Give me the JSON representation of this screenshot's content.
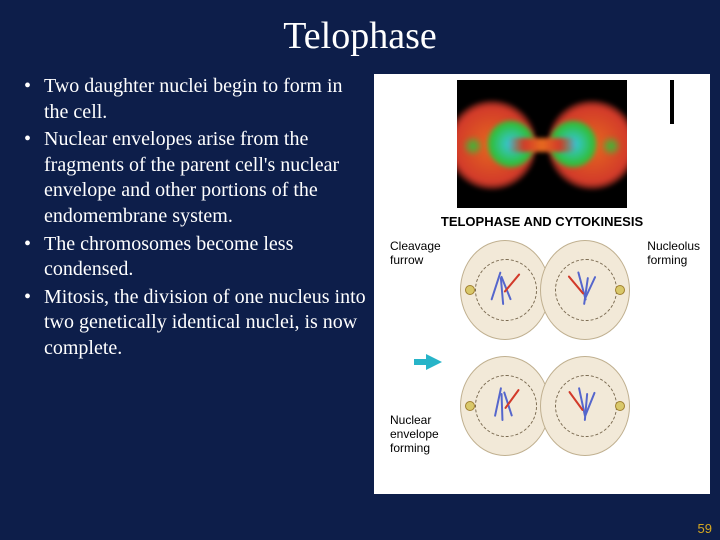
{
  "title": "Telophase",
  "bullets": [
    "Two daughter nuclei begin to form in the cell.",
    "Nuclear envelopes arise from the fragments of the parent cell's nuclear envelope and other portions of the endomembrane system.",
    "The chromosomes become less condensed.",
    "Mitosis, the division of one nucleus into two genetically identical nuclei, is now complete."
  ],
  "figure": {
    "title": "TELOPHASE AND CYTOKINESIS",
    "labels": {
      "cleavage": "Cleavage\nfurrow",
      "nucleolus": "Nucleolus\nforming",
      "nuclear_envelope": "Nuclear\nenvelope\nforming"
    }
  },
  "colors": {
    "slide_bg": "#0d1e4a",
    "text": "#ffffff",
    "panel_bg": "#ffffff",
    "cell_fill": "#f2e9d8",
    "cell_border": "#c0b090",
    "chromatin": "#5566cc",
    "centrosome_fill": "#d9c86a",
    "centrosome_border": "#a08030",
    "arrow": "#27b4c8",
    "pagenum": "#d6a820",
    "micro_bg": "#000000",
    "micro_green": "#2fbf3a",
    "micro_orange": "#e66a1e",
    "micro_cyan": "#35c8e8",
    "micro_red": "#d23a2a"
  },
  "page_number": "59"
}
